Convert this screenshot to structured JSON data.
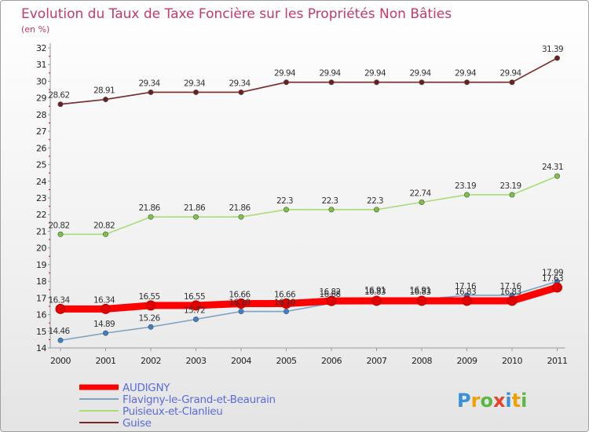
{
  "chart_data": {
    "type": "line",
    "title": "Evolution du Taux de Taxe Foncière sur les Propriétés Non Bâties",
    "subtitle": "(en %)",
    "xlabel": "",
    "ylabel": "",
    "x": [
      "2000",
      "2001",
      "2002",
      "2003",
      "2004",
      "2005",
      "2006",
      "2007",
      "2008",
      "2009",
      "2010",
      "2011"
    ],
    "ylim": [
      14,
      32
    ],
    "yticks": [
      "14",
      "15",
      "16",
      "17",
      "18",
      "19",
      "20",
      "21",
      "22",
      "23",
      "24",
      "25",
      "26",
      "27",
      "28",
      "29",
      "30",
      "31",
      "32"
    ],
    "grid": false,
    "legend_position": "bottom-left",
    "series": [
      {
        "name": "Guise",
        "color": "#7a2828",
        "marker": "#6b1e1e",
        "labels": [
          "28.62",
          "28.91",
          "29.34",
          "29.34",
          "29.34",
          "29.94",
          "29.94",
          "29.94",
          "29.94",
          "29.94",
          "29.94",
          "31.39"
        ],
        "values": [
          28.62,
          28.91,
          29.34,
          29.34,
          29.34,
          29.94,
          29.94,
          29.94,
          29.94,
          29.94,
          29.94,
          31.39
        ]
      },
      {
        "name": "Puisieux-et-Clanlieu",
        "color": "#a9dc74",
        "marker": "#7cc244",
        "labels": [
          "20.82",
          "20.82",
          "21.86",
          "21.86",
          "21.86",
          "22.3",
          "22.3",
          "22.3",
          "22.74",
          "23.19",
          "23.19",
          "24.31"
        ],
        "values": [
          20.82,
          20.82,
          21.86,
          21.86,
          21.86,
          22.3,
          22.3,
          22.3,
          22.74,
          23.19,
          23.19,
          24.31
        ]
      },
      {
        "name": "Flavigny-le-Grand-et-Beaurain",
        "color": "#7aa3c4",
        "marker": "#3a80cc",
        "labels": [
          "14.46",
          "14.89",
          "15.26",
          "15.72",
          "16.19",
          "16.19",
          "16.68",
          "16.91",
          "16.91",
          "17.16",
          "17.16",
          "17.99"
        ],
        "values": [
          14.46,
          14.89,
          15.26,
          15.72,
          16.19,
          16.19,
          16.68,
          16.91,
          16.91,
          17.16,
          17.16,
          17.99
        ]
      },
      {
        "name": "AUDIGNY",
        "color": "#ff0000",
        "marker": "#e00000",
        "labels": [
          "16.34",
          "16.34",
          "16.55",
          "16.55",
          "16.66",
          "16.66",
          "16.82",
          "16.83",
          "16.83",
          "16.83",
          "16.83",
          "17.63"
        ],
        "values": [
          16.34,
          16.34,
          16.55,
          16.55,
          16.66,
          16.66,
          16.82,
          16.83,
          16.83,
          16.83,
          16.83,
          17.63
        ]
      }
    ],
    "legend_order": [
      "AUDIGNY",
      "Flavigny-le-Grand-et-Beaurain",
      "Puisieux-et-Clanlieu",
      "Guise"
    ]
  },
  "logo": {
    "text": "Proxiti"
  }
}
